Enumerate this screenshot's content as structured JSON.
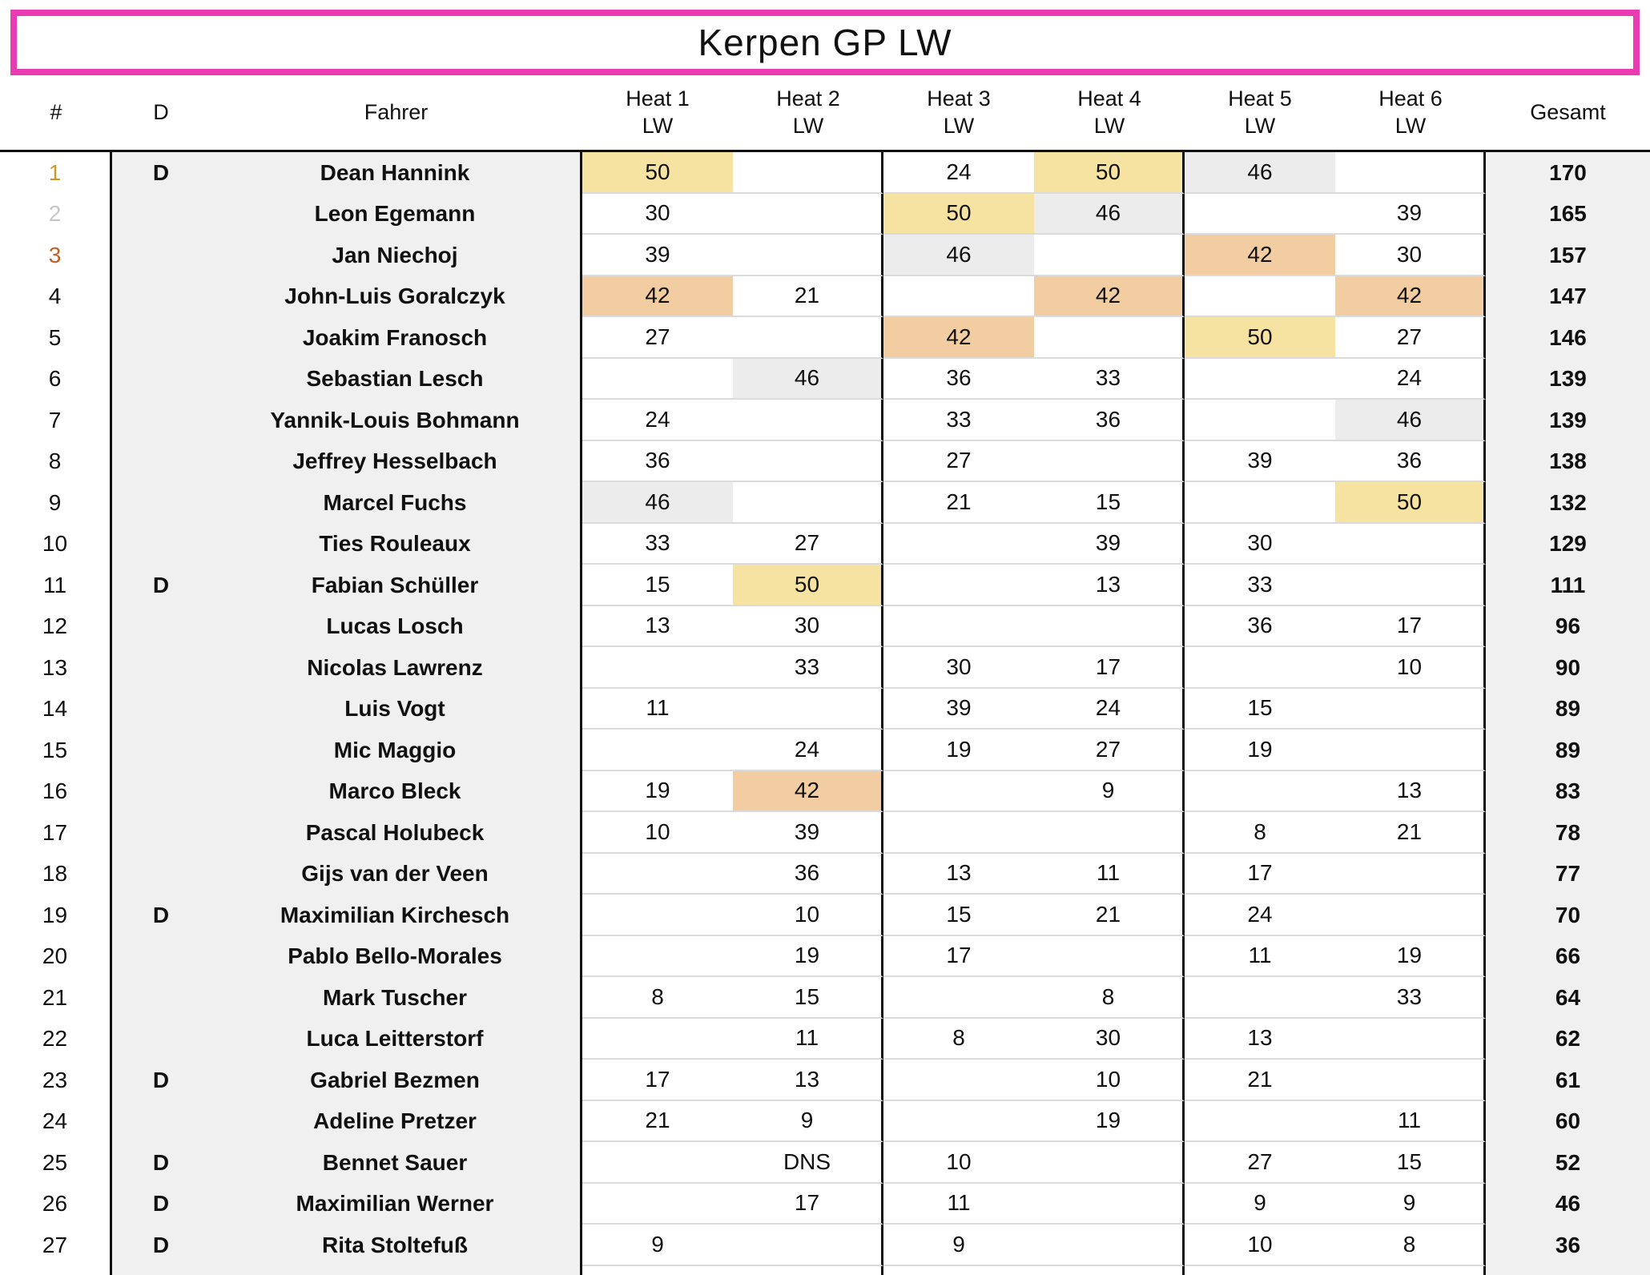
{
  "title": "Kerpen GP LW",
  "header": {
    "rank": "#",
    "discipline": "D",
    "driver": "Fahrer",
    "heats": [
      {
        "name": "Heat 1",
        "cls": "LW"
      },
      {
        "name": "Heat 2",
        "cls": "LW"
      },
      {
        "name": "Heat 3",
        "cls": "LW"
      },
      {
        "name": "Heat 4",
        "cls": "LW"
      },
      {
        "name": "Heat 5",
        "cls": "LW"
      },
      {
        "name": "Heat 6",
        "cls": "LW"
      }
    ],
    "total": "Gesamt"
  },
  "rows": [
    {
      "rank": "1",
      "medal": "gold",
      "d": "D",
      "driver": "Dean Hannink",
      "heats": [
        {
          "v": "50",
          "hl": "first"
        },
        {
          "v": ""
        },
        {
          "v": "24"
        },
        {
          "v": "50",
          "hl": "first"
        },
        {
          "v": "46",
          "hl": "second"
        },
        {
          "v": ""
        }
      ],
      "total": "170"
    },
    {
      "rank": "2",
      "medal": "silver",
      "d": "",
      "driver": "Leon Egemann",
      "heats": [
        {
          "v": "30"
        },
        {
          "v": ""
        },
        {
          "v": "50",
          "hl": "first"
        },
        {
          "v": "46",
          "hl": "second"
        },
        {
          "v": ""
        },
        {
          "v": "39"
        }
      ],
      "total": "165"
    },
    {
      "rank": "3",
      "medal": "bronze",
      "d": "",
      "driver": "Jan Niechoj",
      "heats": [
        {
          "v": "39"
        },
        {
          "v": ""
        },
        {
          "v": "46",
          "hl": "second"
        },
        {
          "v": ""
        },
        {
          "v": "42",
          "hl": "third"
        },
        {
          "v": "30"
        }
      ],
      "total": "157"
    },
    {
      "rank": "4",
      "medal": "",
      "d": "",
      "driver": "John-Luis Goralczyk",
      "heats": [
        {
          "v": "42",
          "hl": "third"
        },
        {
          "v": "21"
        },
        {
          "v": ""
        },
        {
          "v": "42",
          "hl": "third"
        },
        {
          "v": ""
        },
        {
          "v": "42",
          "hl": "third"
        }
      ],
      "total": "147"
    },
    {
      "rank": "5",
      "medal": "",
      "d": "",
      "driver": "Joakim Franosch",
      "heats": [
        {
          "v": "27"
        },
        {
          "v": ""
        },
        {
          "v": "42",
          "hl": "third"
        },
        {
          "v": ""
        },
        {
          "v": "50",
          "hl": "first"
        },
        {
          "v": "27"
        }
      ],
      "total": "146"
    },
    {
      "rank": "6",
      "medal": "",
      "d": "",
      "driver": "Sebastian Lesch",
      "heats": [
        {
          "v": ""
        },
        {
          "v": "46",
          "hl": "second"
        },
        {
          "v": "36"
        },
        {
          "v": "33"
        },
        {
          "v": ""
        },
        {
          "v": "24"
        }
      ],
      "total": "139"
    },
    {
      "rank": "7",
      "medal": "",
      "d": "",
      "driver": "Yannik-Louis Bohmann",
      "heats": [
        {
          "v": "24"
        },
        {
          "v": ""
        },
        {
          "v": "33"
        },
        {
          "v": "36"
        },
        {
          "v": ""
        },
        {
          "v": "46",
          "hl": "second"
        }
      ],
      "total": "139"
    },
    {
      "rank": "8",
      "medal": "",
      "d": "",
      "driver": "Jeffrey Hesselbach",
      "heats": [
        {
          "v": "36"
        },
        {
          "v": ""
        },
        {
          "v": "27"
        },
        {
          "v": ""
        },
        {
          "v": "39"
        },
        {
          "v": "36"
        }
      ],
      "total": "138"
    },
    {
      "rank": "9",
      "medal": "",
      "d": "",
      "driver": "Marcel Fuchs",
      "heats": [
        {
          "v": "46",
          "hl": "second"
        },
        {
          "v": ""
        },
        {
          "v": "21"
        },
        {
          "v": "15"
        },
        {
          "v": ""
        },
        {
          "v": "50",
          "hl": "first"
        }
      ],
      "total": "132"
    },
    {
      "rank": "10",
      "medal": "",
      "d": "",
      "driver": "Ties Rouleaux",
      "heats": [
        {
          "v": "33"
        },
        {
          "v": "27"
        },
        {
          "v": ""
        },
        {
          "v": "39"
        },
        {
          "v": "30"
        },
        {
          "v": ""
        }
      ],
      "total": "129"
    },
    {
      "rank": "11",
      "medal": "",
      "d": "D",
      "driver": "Fabian Schüller",
      "heats": [
        {
          "v": "15"
        },
        {
          "v": "50",
          "hl": "first"
        },
        {
          "v": ""
        },
        {
          "v": "13"
        },
        {
          "v": "33"
        },
        {
          "v": ""
        }
      ],
      "total": "111"
    },
    {
      "rank": "12",
      "medal": "",
      "d": "",
      "driver": "Lucas Losch",
      "heats": [
        {
          "v": "13"
        },
        {
          "v": "30"
        },
        {
          "v": ""
        },
        {
          "v": ""
        },
        {
          "v": "36"
        },
        {
          "v": "17"
        }
      ],
      "total": "96"
    },
    {
      "rank": "13",
      "medal": "",
      "d": "",
      "driver": "Nicolas Lawrenz",
      "heats": [
        {
          "v": ""
        },
        {
          "v": "33"
        },
        {
          "v": "30"
        },
        {
          "v": "17"
        },
        {
          "v": ""
        },
        {
          "v": "10"
        }
      ],
      "total": "90"
    },
    {
      "rank": "14",
      "medal": "",
      "d": "",
      "driver": "Luis Vogt",
      "heats": [
        {
          "v": "11"
        },
        {
          "v": ""
        },
        {
          "v": "39"
        },
        {
          "v": "24"
        },
        {
          "v": "15"
        },
        {
          "v": ""
        }
      ],
      "total": "89"
    },
    {
      "rank": "15",
      "medal": "",
      "d": "",
      "driver": "Mic Maggio",
      "heats": [
        {
          "v": ""
        },
        {
          "v": "24"
        },
        {
          "v": "19"
        },
        {
          "v": "27"
        },
        {
          "v": "19"
        },
        {
          "v": ""
        }
      ],
      "total": "89"
    },
    {
      "rank": "16",
      "medal": "",
      "d": "",
      "driver": "Marco Bleck",
      "heats": [
        {
          "v": "19"
        },
        {
          "v": "42",
          "hl": "third"
        },
        {
          "v": ""
        },
        {
          "v": "9"
        },
        {
          "v": ""
        },
        {
          "v": "13"
        }
      ],
      "total": "83"
    },
    {
      "rank": "17",
      "medal": "",
      "d": "",
      "driver": "Pascal Holubeck",
      "heats": [
        {
          "v": "10"
        },
        {
          "v": "39"
        },
        {
          "v": ""
        },
        {
          "v": ""
        },
        {
          "v": "8"
        },
        {
          "v": "21"
        }
      ],
      "total": "78"
    },
    {
      "rank": "18",
      "medal": "",
      "d": "",
      "driver": "Gijs van der Veen",
      "heats": [
        {
          "v": ""
        },
        {
          "v": "36"
        },
        {
          "v": "13"
        },
        {
          "v": "11"
        },
        {
          "v": "17"
        },
        {
          "v": ""
        }
      ],
      "total": "77"
    },
    {
      "rank": "19",
      "medal": "",
      "d": "D",
      "driver": "Maximilian Kirchesch",
      "heats": [
        {
          "v": ""
        },
        {
          "v": "10"
        },
        {
          "v": "15"
        },
        {
          "v": "21"
        },
        {
          "v": "24"
        },
        {
          "v": ""
        }
      ],
      "total": "70"
    },
    {
      "rank": "20",
      "medal": "",
      "d": "",
      "driver": "Pablo Bello-Morales",
      "heats": [
        {
          "v": ""
        },
        {
          "v": "19"
        },
        {
          "v": "17"
        },
        {
          "v": ""
        },
        {
          "v": "11"
        },
        {
          "v": "19"
        }
      ],
      "total": "66"
    },
    {
      "rank": "21",
      "medal": "",
      "d": "",
      "driver": "Mark Tuscher",
      "heats": [
        {
          "v": "8"
        },
        {
          "v": "15"
        },
        {
          "v": ""
        },
        {
          "v": "8"
        },
        {
          "v": ""
        },
        {
          "v": "33"
        }
      ],
      "total": "64"
    },
    {
      "rank": "22",
      "medal": "",
      "d": "",
      "driver": "Luca Leitterstorf",
      "heats": [
        {
          "v": ""
        },
        {
          "v": "11"
        },
        {
          "v": "8"
        },
        {
          "v": "30"
        },
        {
          "v": "13"
        },
        {
          "v": ""
        }
      ],
      "total": "62"
    },
    {
      "rank": "23",
      "medal": "",
      "d": "D",
      "driver": "Gabriel Bezmen",
      "heats": [
        {
          "v": "17"
        },
        {
          "v": "13"
        },
        {
          "v": ""
        },
        {
          "v": "10"
        },
        {
          "v": "21"
        },
        {
          "v": ""
        }
      ],
      "total": "61"
    },
    {
      "rank": "24",
      "medal": "",
      "d": "",
      "driver": "Adeline Pretzer",
      "heats": [
        {
          "v": "21"
        },
        {
          "v": "9"
        },
        {
          "v": ""
        },
        {
          "v": "19"
        },
        {
          "v": ""
        },
        {
          "v": "11"
        }
      ],
      "total": "60"
    },
    {
      "rank": "25",
      "medal": "",
      "d": "D",
      "driver": "Bennet Sauer",
      "heats": [
        {
          "v": ""
        },
        {
          "v": "DNS"
        },
        {
          "v": "10"
        },
        {
          "v": ""
        },
        {
          "v": "27"
        },
        {
          "v": "15"
        }
      ],
      "total": "52"
    },
    {
      "rank": "26",
      "medal": "",
      "d": "D",
      "driver": "Maximilian Werner",
      "heats": [
        {
          "v": ""
        },
        {
          "v": "17"
        },
        {
          "v": "11"
        },
        {
          "v": ""
        },
        {
          "v": "9"
        },
        {
          "v": "9"
        }
      ],
      "total": "46"
    },
    {
      "rank": "27",
      "medal": "",
      "d": "D",
      "driver": "Rita Stoltefuß",
      "heats": [
        {
          "v": "9"
        },
        {
          "v": ""
        },
        {
          "v": "9"
        },
        {
          "v": ""
        },
        {
          "v": "10"
        },
        {
          "v": "8"
        }
      ],
      "total": "36"
    }
  ],
  "colors": {
    "accent": "#E93CB2",
    "hl_first": "#F7E3A1",
    "hl_second": "#ECECEC",
    "hl_third": "#F2CDA2",
    "panel": "#F0F0F0",
    "separator": "#DBDBDB",
    "grid": "#111111",
    "rank_gold": "#C79A2D",
    "rank_silver": "#C7C7C7",
    "rank_bronze": "#BE6228"
  }
}
